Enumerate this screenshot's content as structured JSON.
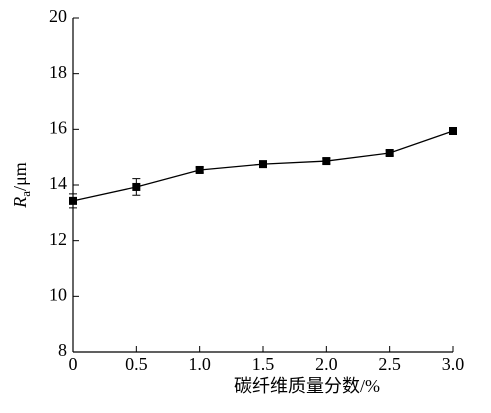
{
  "chart_data": {
    "type": "line",
    "x_label": "碳纤维质量分数/%",
    "y_label": "R",
    "y_label_sub": "a",
    "y_label_unit": "/μm",
    "x": [
      0,
      0.5,
      1,
      1.5,
      2,
      2.5,
      3
    ],
    "series": [
      {
        "color": "#000000",
        "values": [
          13.43,
          13.93,
          14.54,
          14.75,
          14.86,
          15.15,
          15.94
        ],
        "errors": [
          0.25,
          0.3,
          0.1,
          0.1,
          0.1,
          0.1,
          0.1
        ]
      }
    ],
    "xlim": [
      0,
      3
    ],
    "xticks": [
      0,
      0.5,
      {
        "value": 1,
        "label": "1.0"
      },
      1.5,
      {
        "value": 2,
        "label": "2.0"
      },
      2.5,
      {
        "value": 3,
        "label": "3.0"
      }
    ],
    "ylim": [
      8,
      20
    ],
    "yticks": [
      8,
      10,
      12,
      14,
      16,
      18,
      20
    ]
  }
}
